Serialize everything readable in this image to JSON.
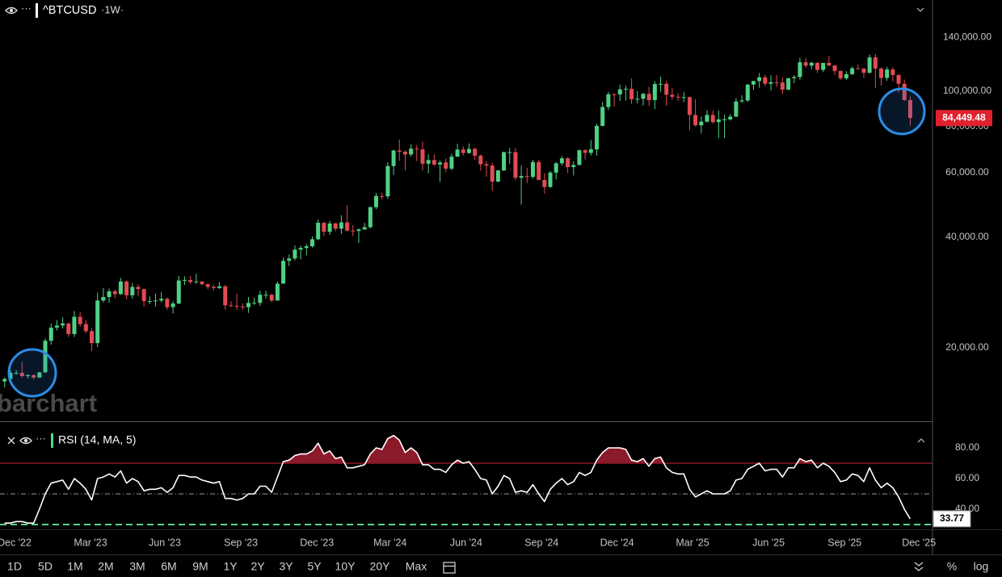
{
  "chart_data": [
    {
      "type": "candlestick",
      "title": "^BTCUSD",
      "subtitle": "·1W·",
      "watermark": "barchart",
      "log_scale": true,
      "up_color": "#4fd183",
      "down_color": "#e24b52",
      "xlim": [
        -0.8,
        159.7
      ],
      "ylim": [
        12620,
        177000
      ],
      "yticks": [
        {
          "value": 20000,
          "label": "20,000.00"
        },
        {
          "value": 40000,
          "label": "40,000.00"
        },
        {
          "value": 60000,
          "label": "60,000.00"
        },
        {
          "value": 80000,
          "label": "80,000.00"
        },
        {
          "value": 100000,
          "label": "100,000.00"
        },
        {
          "value": 140000,
          "label": "140,000.00"
        }
      ],
      "ohlc": [
        [
          16200,
          16600,
          15600,
          16450
        ],
        [
          16450,
          17400,
          16400,
          17100
        ],
        [
          17100,
          17400,
          16900,
          17100
        ],
        [
          17100,
          18300,
          16600,
          16750
        ],
        [
          16750,
          16950,
          16500,
          16850
        ],
        [
          16850,
          16950,
          16400,
          16600
        ],
        [
          16600,
          17200,
          16550,
          17150
        ],
        [
          17150,
          21200,
          17100,
          20900
        ],
        [
          20900,
          23300,
          20400,
          22700
        ],
        [
          22700,
          23800,
          22300,
          23000
        ],
        [
          23000,
          24200,
          22600,
          23300
        ],
        [
          23300,
          23400,
          21400,
          21800
        ],
        [
          21800,
          25200,
          21400,
          24300
        ],
        [
          24300,
          25000,
          22800,
          23200
        ],
        [
          23200,
          23800,
          21900,
          22200
        ],
        [
          22200,
          22600,
          19600,
          20600
        ],
        [
          20600,
          28300,
          20100,
          26900
        ],
        [
          26900,
          29100,
          26600,
          27500
        ],
        [
          27500,
          29000,
          26500,
          28500
        ],
        [
          28500,
          28800,
          27300,
          28000
        ],
        [
          28000,
          31000,
          27900,
          30300
        ],
        [
          30300,
          30500,
          27100,
          27800
        ],
        [
          27800,
          30000,
          27200,
          29300
        ],
        [
          29300,
          29800,
          27700,
          28900
        ],
        [
          28900,
          29000,
          25900,
          26800
        ],
        [
          26800,
          27600,
          26300,
          26800
        ],
        [
          26800,
          28100,
          25900,
          26900
        ],
        [
          26900,
          28400,
          26600,
          27200
        ],
        [
          27200,
          27400,
          25400,
          25800
        ],
        [
          25800,
          26800,
          24800,
          26400
        ],
        [
          26400,
          31400,
          26300,
          30500
        ],
        [
          30500,
          31300,
          29600,
          30600
        ],
        [
          30600,
          31400,
          29800,
          30200
        ],
        [
          30200,
          31800,
          29900,
          30300
        ],
        [
          30300,
          30400,
          29600,
          29800
        ],
        [
          29800,
          29900,
          28900,
          29300
        ],
        [
          29300,
          29700,
          28600,
          29100
        ],
        [
          29100,
          30200,
          28900,
          29400
        ],
        [
          29400,
          29700,
          25400,
          26100
        ],
        [
          26100,
          26800,
          25800,
          26000
        ],
        [
          26000,
          28100,
          25400,
          25900
        ],
        [
          25900,
          26400,
          25400,
          25800
        ],
        [
          25800,
          27500,
          24900,
          26500
        ],
        [
          26500,
          27400,
          26200,
          26500
        ],
        [
          26500,
          28600,
          26000,
          27900
        ],
        [
          27900,
          28600,
          27200,
          27900
        ],
        [
          27900,
          28000,
          26600,
          26900
        ],
        [
          26900,
          30300,
          26900,
          29900
        ],
        [
          29900,
          35200,
          29900,
          34500
        ],
        [
          34500,
          35900,
          33400,
          35000
        ],
        [
          35000,
          38000,
          34600,
          37000
        ],
        [
          37000,
          37900,
          34800,
          37400
        ],
        [
          37400,
          38400,
          35700,
          37800
        ],
        [
          37800,
          40200,
          37500,
          39500
        ],
        [
          39500,
          44700,
          39300,
          43800
        ],
        [
          43800,
          44000,
          40300,
          41400
        ],
        [
          41400,
          44300,
          40600,
          43600
        ],
        [
          43600,
          43800,
          41500,
          42200
        ],
        [
          42200,
          45900,
          40800,
          43900
        ],
        [
          43900,
          48900,
          41500,
          41700
        ],
        [
          41700,
          43200,
          40300,
          41600
        ],
        [
          41600,
          42300,
          38600,
          42000
        ],
        [
          42000,
          43800,
          41900,
          42600
        ],
        [
          42600,
          48500,
          42300,
          48300
        ],
        [
          48300,
          52800,
          47700,
          51800
        ],
        [
          51800,
          52900,
          50700,
          51700
        ],
        [
          51700,
          64000,
          50900,
          62500
        ],
        [
          62500,
          69200,
          59100,
          68900
        ],
        [
          68900,
          73800,
          64600,
          68400
        ],
        [
          68400,
          68900,
          60800,
          67200
        ],
        [
          67200,
          71600,
          66400,
          69700
        ],
        [
          69700,
          71300,
          64500,
          69400
        ],
        [
          69400,
          72800,
          60800,
          63400
        ],
        [
          63400,
          67300,
          59700,
          64900
        ],
        [
          64900,
          67200,
          62500,
          63100
        ],
        [
          63100,
          64700,
          56600,
          63900
        ],
        [
          63900,
          65500,
          60200,
          61500
        ],
        [
          61500,
          67600,
          60800,
          66300
        ],
        [
          66300,
          71900,
          66200,
          69300
        ],
        [
          69300,
          70700,
          66700,
          67800
        ],
        [
          67800,
          72000,
          67600,
          69600
        ],
        [
          69600,
          70200,
          65000,
          66700
        ],
        [
          66700,
          67200,
          60700,
          63200
        ],
        [
          63200,
          64500,
          58400,
          62700
        ],
        [
          62700,
          63800,
          53500,
          56700
        ],
        [
          56700,
          61000,
          56500,
          60800
        ],
        [
          60800,
          68400,
          60600,
          68200
        ],
        [
          68200,
          70000,
          63400,
          68200
        ],
        [
          68200,
          70000,
          57200,
          58100
        ],
        [
          58100,
          62700,
          49100,
          58700
        ],
        [
          58700,
          61800,
          56200,
          58400
        ],
        [
          58400,
          65000,
          57800,
          64100
        ],
        [
          64100,
          64900,
          57200,
          57300
        ],
        [
          57300,
          59800,
          52600,
          54800
        ],
        [
          54800,
          60600,
          54600,
          60000
        ],
        [
          60000,
          64100,
          57500,
          63600
        ],
        [
          63600,
          66500,
          62700,
          65600
        ],
        [
          65600,
          66000,
          59900,
          62100
        ],
        [
          62100,
          64400,
          58900,
          62900
        ],
        [
          62900,
          69400,
          62900,
          69000
        ],
        [
          69000,
          69500,
          65100,
          67900
        ],
        [
          67900,
          73600,
          66800,
          69400
        ],
        [
          69400,
          81500,
          66800,
          80400
        ],
        [
          80400,
          93400,
          80200,
          90500
        ],
        [
          90500,
          99600,
          88800,
          98000
        ],
        [
          98000,
          98700,
          90800,
          97900
        ],
        [
          97900,
          104000,
          94000,
          101100
        ],
        [
          101100,
          103500,
          94200,
          101400
        ],
        [
          101400,
          108300,
          92200,
          95000
        ],
        [
          95000,
          99900,
          92500,
          95300
        ],
        [
          95300,
          98900,
          91400,
          98300
        ],
        [
          98300,
          102700,
          91200,
          94500
        ],
        [
          94500,
          106400,
          89300,
          104500
        ],
        [
          104500,
          109400,
          99500,
          104700
        ],
        [
          104700,
          106500,
          91200,
          97700
        ],
        [
          97700,
          102000,
          94700,
          96500
        ],
        [
          96500,
          98800,
          94100,
          96100
        ],
        [
          96100,
          99500,
          93300,
          96300
        ],
        [
          96300,
          96700,
          78200,
          86100
        ],
        [
          86100,
          95000,
          80100,
          80700
        ],
        [
          80700,
          85300,
          76600,
          82600
        ],
        [
          82600,
          88800,
          82000,
          86100
        ],
        [
          86100,
          88500,
          81600,
          82300
        ],
        [
          82300,
          88500,
          74500,
          83700
        ],
        [
          83700,
          86100,
          74400,
          83700
        ],
        [
          83700,
          86500,
          83100,
          85200
        ],
        [
          85200,
          95700,
          85100,
          93700
        ],
        [
          93700,
          97400,
          92800,
          94300
        ],
        [
          94300,
          104300,
          93400,
          104200
        ],
        [
          104200,
          106700,
          100700,
          106500
        ],
        [
          106500,
          111900,
          102100,
          109000
        ],
        [
          109000,
          110700,
          103100,
          104700
        ],
        [
          104700,
          110500,
          100400,
          105700
        ],
        [
          105700,
          110600,
          102700,
          105500
        ],
        [
          105500,
          108900,
          98200,
          100900
        ],
        [
          100900,
          108500,
          100600,
          108400
        ],
        [
          108400,
          110500,
          105100,
          109200
        ],
        [
          109200,
          123200,
          107500,
          119800
        ],
        [
          119800,
          123000,
          115700,
          117300
        ],
        [
          117300,
          120200,
          114700,
          119400
        ],
        [
          119400,
          119800,
          112000,
          114200
        ],
        [
          114200,
          119300,
          112700,
          119300
        ],
        [
          119300,
          124500,
          116900,
          117400
        ],
        [
          117400,
          117600,
          110700,
          113500
        ],
        [
          113500,
          113700,
          107300,
          108300
        ],
        [
          108300,
          113300,
          107300,
          111200
        ],
        [
          111200,
          116700,
          110600,
          115300
        ],
        [
          115300,
          117900,
          114700,
          115200
        ],
        [
          115200,
          115400,
          108600,
          112200
        ],
        [
          112200,
          125700,
          111600,
          123500
        ],
        [
          123500,
          126200,
          102000,
          115200
        ],
        [
          115200,
          115900,
          103500,
          108600
        ],
        [
          108600,
          116400,
          106700,
          114500
        ],
        [
          114500,
          116100,
          106300,
          110600
        ],
        [
          110600,
          111100,
          98900,
          104700
        ],
        [
          104700,
          107500,
          94000,
          94500
        ],
        [
          94500,
          96800,
          80500,
          84449.48
        ]
      ],
      "last_label": "84,449.48",
      "last_label_color": "#e0202e"
    },
    {
      "type": "line",
      "title": "RSI (14, MA, 5)",
      "color": "#ffffff",
      "xlim": [
        -0.8,
        159.7
      ],
      "ylim": [
        27.4,
        96.8
      ],
      "yticks": [
        {
          "value": 80,
          "label": "80.00"
        },
        {
          "value": 60,
          "label": "60.00"
        },
        {
          "value": 40,
          "label": "40.00"
        }
      ],
      "xticks": [
        {
          "value": 1.7,
          "label": "Dec '22"
        },
        {
          "value": 14.8,
          "label": "Mar '23"
        },
        {
          "value": 27.6,
          "label": "Jun '23"
        },
        {
          "value": 40.7,
          "label": "Sep '23"
        },
        {
          "value": 53.8,
          "label": "Dec '23"
        },
        {
          "value": 66.4,
          "label": "Mar '24"
        },
        {
          "value": 79.5,
          "label": "Jun '24"
        },
        {
          "value": 92.5,
          "label": "Sep '24"
        },
        {
          "value": 105.5,
          "label": "Dec '24"
        },
        {
          "value": 118.5,
          "label": "Mar '25"
        },
        {
          "value": 131.6,
          "label": "Jun '25"
        },
        {
          "value": 144.7,
          "label": "Sep '25"
        },
        {
          "value": 157.5,
          "label": "Dec '25"
        }
      ],
      "levels": [
        {
          "value": 70,
          "color": "#d0233b",
          "style": "solid",
          "fill": "#8b1a2a"
        },
        {
          "value": 50,
          "color": "#9a9a9a",
          "style": "dashdot"
        },
        {
          "value": 30,
          "color": "#56d68b",
          "style": "dashed"
        }
      ],
      "values": [
        31,
        31,
        32,
        32,
        31,
        31,
        40,
        50,
        57,
        58,
        59,
        53,
        60,
        57,
        53,
        46,
        60,
        61,
        63,
        61,
        65,
        57,
        60,
        58,
        52,
        53,
        53,
        54,
        51,
        54,
        62,
        62,
        61,
        61,
        59,
        58,
        57,
        58,
        47,
        47,
        46,
        47,
        50,
        50,
        55,
        55,
        51,
        61,
        71,
        72,
        75,
        76,
        76,
        78,
        83,
        76,
        78,
        73,
        74,
        67,
        67,
        68,
        69,
        76,
        80,
        79,
        86,
        88,
        85,
        77,
        80,
        77,
        69,
        69,
        66,
        66,
        64,
        69,
        72,
        70,
        71,
        66,
        60,
        59,
        50,
        55,
        62,
        60,
        51,
        52,
        51,
        56,
        50,
        45,
        53,
        57,
        60,
        56,
        58,
        64,
        62,
        64,
        72,
        77,
        80,
        80,
        80,
        79,
        72,
        71,
        73,
        68,
        73,
        74,
        67,
        64,
        63,
        63,
        53,
        48,
        50,
        52,
        50,
        50,
        50,
        52,
        59,
        60,
        66,
        68,
        70,
        65,
        66,
        66,
        61,
        67,
        67,
        73,
        71,
        72,
        67,
        70,
        68,
        64,
        58,
        59,
        63,
        62,
        58,
        67,
        59,
        54,
        57,
        54,
        48,
        40,
        33.77
      ],
      "last_label": "33.77"
    }
  ],
  "toolbar": {
    "ranges": [
      "1D",
      "5D",
      "1M",
      "2M",
      "3M",
      "6M",
      "9M",
      "1Y",
      "2Y",
      "3Y",
      "5Y",
      "10Y",
      "20Y",
      "Max"
    ],
    "active": "3Y",
    "active_color": "#3d8ff5",
    "percent": "%",
    "scale": "log"
  }
}
